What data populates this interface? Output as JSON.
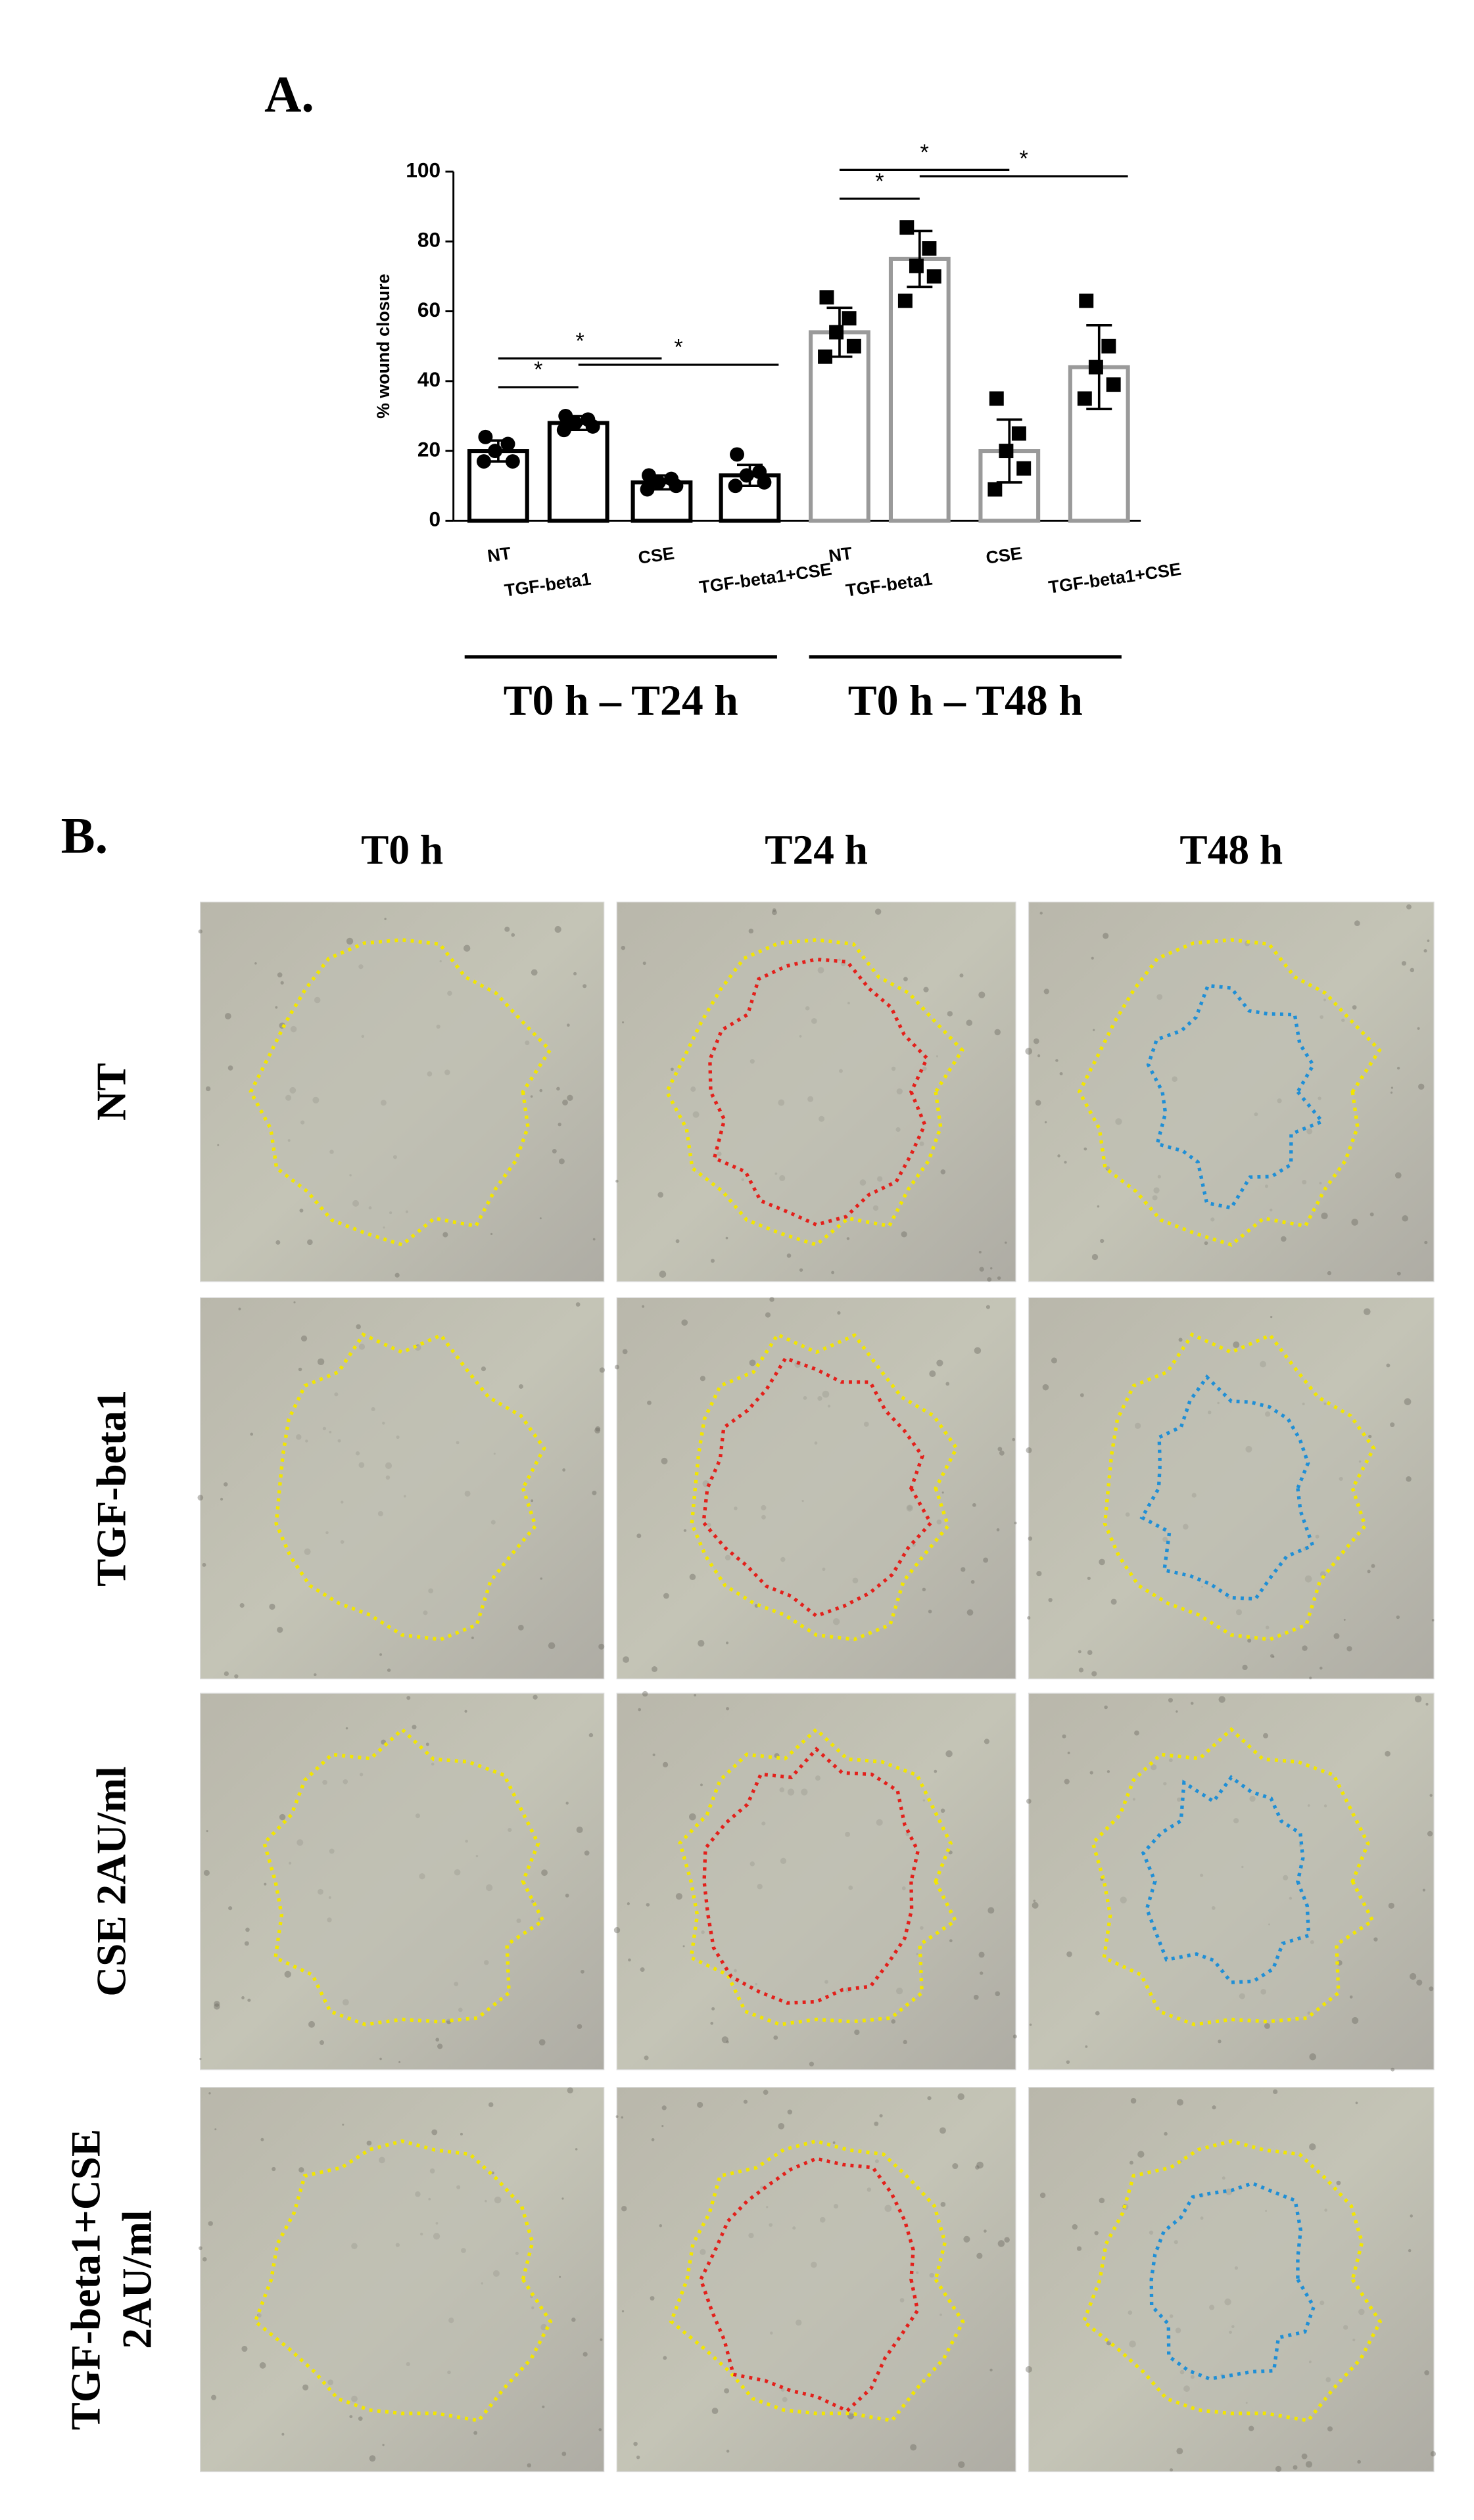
{
  "panel_a": {
    "label": "A.",
    "chart_data": {
      "type": "bar",
      "y_label": "% wound closure",
      "ylim": [
        0,
        100
      ],
      "yticks": [
        0,
        20,
        40,
        60,
        80,
        100
      ],
      "groups": [
        {
          "label": "T0 h – T24 h",
          "color": "#000000",
          "categories": [
            "NT",
            "TGF-beta1",
            "CSE",
            "TGF-beta1+CSE"
          ],
          "values": [
            20,
            28,
            11,
            13
          ],
          "errors": [
            3,
            2,
            2,
            3
          ],
          "points": [
            [
              24,
              22,
              20,
              17,
              17
            ],
            [
              30,
              29,
              28,
              27,
              26
            ],
            [
              13,
              12,
              11,
              10,
              9
            ],
            [
              19,
              14,
              13,
              11,
              10
            ]
          ]
        },
        {
          "label": "T0 h – T48 h",
          "color": "#9a9a9a",
          "categories": [
            "NT",
            "TGF-beta1",
            "CSE",
            "TGF-beta1+CSE"
          ],
          "values": [
            54,
            75,
            20,
            44
          ],
          "errors": [
            7,
            8,
            9,
            12
          ],
          "points": [
            [
              64,
              58,
              54,
              50,
              47
            ],
            [
              84,
              78,
              73,
              70,
              63
            ],
            [
              35,
              25,
              20,
              15,
              9
            ],
            [
              63,
              50,
              44,
              39,
              35
            ]
          ]
        }
      ],
      "annotations": [
        {
          "text": "*",
          "group": 0,
          "from": 0,
          "to": 1
        },
        {
          "text": "*",
          "group": 0,
          "from": 0,
          "to": 2
        },
        {
          "text": "*",
          "group": 0,
          "from": 1,
          "to": 3
        },
        {
          "text": "*",
          "group": 1,
          "from": 0,
          "to": 1
        },
        {
          "text": "*",
          "group": 1,
          "from": 0,
          "to": 2
        },
        {
          "text": "*",
          "group": 1,
          "from": 1,
          "to": 3
        }
      ]
    }
  },
  "panel_b": {
    "label": "B.",
    "columns": [
      "T0 h",
      "T24 h",
      "T48 h"
    ],
    "rows": [
      [
        "NT"
      ],
      [
        "TGF-beta1"
      ],
      [
        "CSE 2AU/ml"
      ],
      [
        "TGF-beta1+CSE",
        "2AU/ml"
      ]
    ]
  }
}
